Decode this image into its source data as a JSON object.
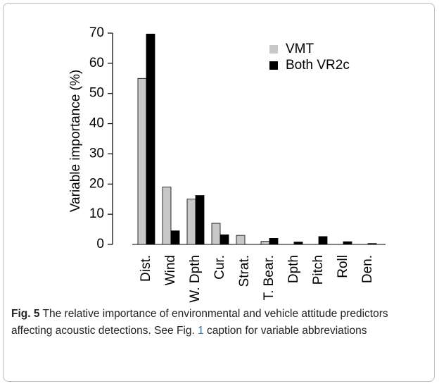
{
  "chart_data": {
    "type": "bar",
    "y_label": "Variable importance (%)",
    "categories": [
      "Dist.",
      "Wind",
      "W. Dpth",
      "Cur.",
      "Strat.",
      "T. Bear.",
      "Dpth",
      "Pitch",
      "Roll",
      "Den."
    ],
    "series": [
      {
        "name": "VMT",
        "color": "#c8c8c8",
        "values": [
          55,
          19,
          15,
          7,
          3,
          1,
          0,
          0,
          0,
          0
        ]
      },
      {
        "name": "Both VR2c",
        "color": "#000000",
        "values": [
          69.7,
          4.5,
          16.2,
          3.2,
          0,
          2,
          0.8,
          2.6,
          0.9,
          0.3
        ]
      }
    ],
    "ylim": [
      0,
      70
    ],
    "yticks": [
      0,
      10,
      20,
      30,
      40,
      50,
      60,
      70
    ],
    "legend": "top-right"
  },
  "caption": {
    "label": "Fig. 5",
    "text": " The relative importance of environmental and vehicle attitude predictors affecting acoustic detections. See Fig. ",
    "link": "1",
    "text_after": " caption for variable abbreviations"
  }
}
